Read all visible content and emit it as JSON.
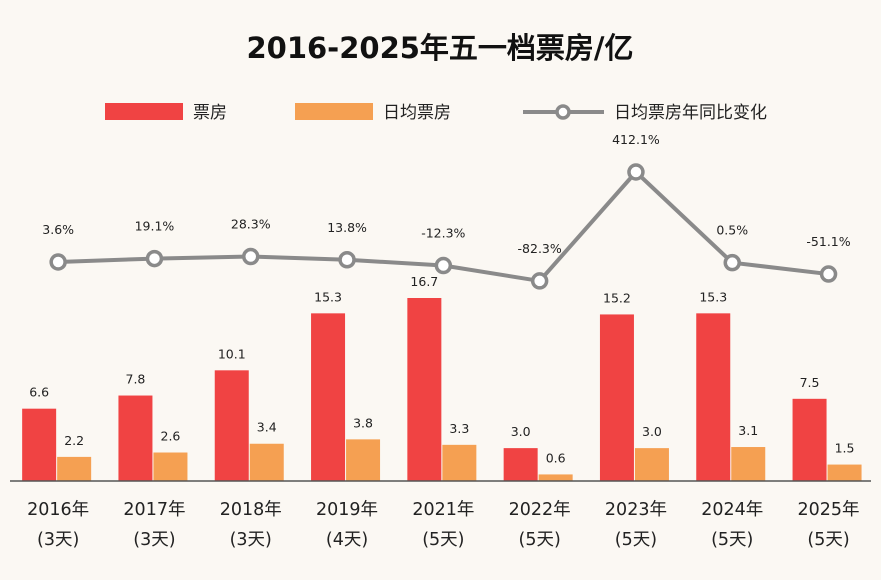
{
  "chart_data": {
    "type": "bar",
    "title": "2016-2025年五一档票房/亿",
    "categories": [
      "2016年",
      "2017年",
      "2018年",
      "2019年",
      "2021年",
      "2022年",
      "2023年",
      "2024年",
      "2025年"
    ],
    "sub_labels": [
      "(3天)",
      "(3天)",
      "(3天)",
      "(4天)",
      "(5天)",
      "(5天)",
      "(5天)",
      "(5天)",
      "(5天)"
    ],
    "series": [
      {
        "name": "票房",
        "kind": "bar",
        "color": "#f04343",
        "values": [
          6.6,
          7.8,
          10.1,
          15.3,
          16.7,
          3.0,
          15.2,
          15.3,
          7.5
        ],
        "labels": [
          "6.6",
          "7.8",
          "10.1",
          "15.3",
          "16.7",
          "3.0",
          "15.2",
          "15.3",
          "7.5"
        ]
      },
      {
        "name": "日均票房",
        "kind": "bar",
        "color": "#f5a052",
        "values": [
          2.2,
          2.6,
          3.4,
          3.8,
          3.3,
          0.6,
          3.0,
          3.1,
          1.5
        ],
        "labels": [
          "2.2",
          "2.6",
          "3.4",
          "3.8",
          "3.3",
          "0.6",
          "3.0",
          "3.1",
          "1.5"
        ]
      },
      {
        "name": "日均票房年同比变化",
        "kind": "line",
        "color": "#8a8a8a",
        "values": [
          3.6,
          19.1,
          28.3,
          13.8,
          -12.3,
          -82.3,
          412.1,
          0.5,
          -51.1
        ],
        "labels": [
          "3.6%",
          "19.1%",
          "28.3%",
          "13.8%",
          "-12.3%",
          "-82.3%",
          "412.1%",
          "0.5%",
          "-51.1%"
        ]
      }
    ],
    "ylim_bars": [
      0,
      20
    ],
    "ylim_line": [
      -100,
      450
    ],
    "legend_position": "top"
  }
}
